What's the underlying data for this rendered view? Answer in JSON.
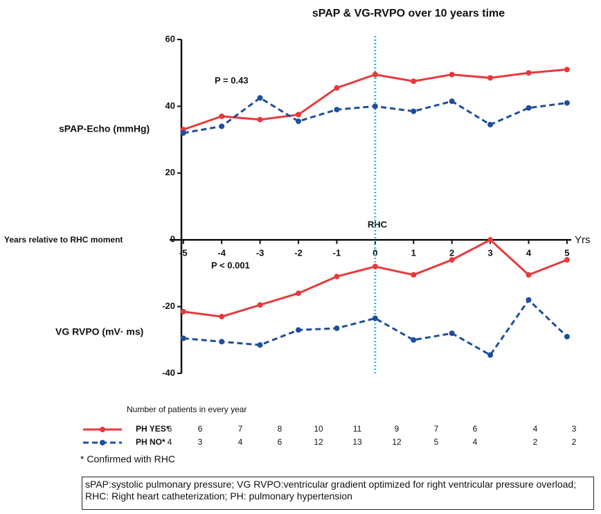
{
  "chart_data": {
    "type": "line",
    "title": "sPAP & VG-RVPO over 10 years  time",
    "y_label_top": "sPAP-Echo (mmHg)",
    "y_label_bottom": "VG RVPO (mV· ms)",
    "x_label": "Years relative to RHC moment",
    "x_unit": "Yrs",
    "marker_label": "RHC",
    "annotations": [
      "P = 0.43",
      "P < 0.001"
    ],
    "x": [
      -5,
      -4,
      -3,
      -2,
      -1,
      0,
      1,
      2,
      3,
      4,
      5
    ],
    "xlim": [
      -5.05,
      5.2
    ],
    "xticks": [
      -5,
      -4,
      -3,
      -2,
      -1,
      0,
      1,
      2,
      3,
      4,
      5
    ],
    "ylim": [
      -40,
      60
    ],
    "yticks": [
      -40,
      -20,
      0,
      20,
      40,
      60
    ],
    "marker_x": 0,
    "series": [
      {
        "color": "#e8393b",
        "dashed": false,
        "values": [
          33,
          37,
          36,
          37.5,
          45.5,
          49.5,
          47.5,
          49.5,
          48.5,
          50,
          51
        ]
      },
      {
        "color": "#1f4e9c",
        "dashed": true,
        "values": [
          32,
          34,
          42.5,
          35.5,
          39,
          40,
          38.5,
          41.5,
          34.5,
          39.5,
          41
        ]
      },
      {
        "color": "#e8393b",
        "dashed": false,
        "values": [
          -21.5,
          -23,
          -19.5,
          -16,
          -11,
          -8,
          -10.5,
          -6,
          0,
          -10.5,
          -6
        ]
      },
      {
        "color": "#1f4e9c",
        "dashed": true,
        "values": [
          -29.5,
          -30.5,
          -31.5,
          -27,
          -26.5,
          -23.5,
          -30,
          -28,
          -34.5,
          -18,
          -29
        ]
      }
    ],
    "table_title": "Number of patients in every year",
    "legend": [
      {
        "name": "PH YES*",
        "color": "#e8393b",
        "dashed": false,
        "counts": [
          6,
          6,
          7,
          8,
          10,
          11,
          9,
          7,
          6,
          4,
          3
        ]
      },
      {
        "name": "PH NO*",
        "color": "#1f4e9c",
        "dashed": true,
        "counts": [
          4,
          3,
          4,
          6,
          12,
          13,
          12,
          5,
          4,
          2,
          2
        ]
      }
    ],
    "footnote": "* Confirmed with RHC",
    "definitions": "sPAP:systolic pulmonary pressure; VG RVPO:ventricular gradient optimized for right ventricular pressure overload; RHC: Right heart catheterization; PH: pulmonary hypertension"
  }
}
